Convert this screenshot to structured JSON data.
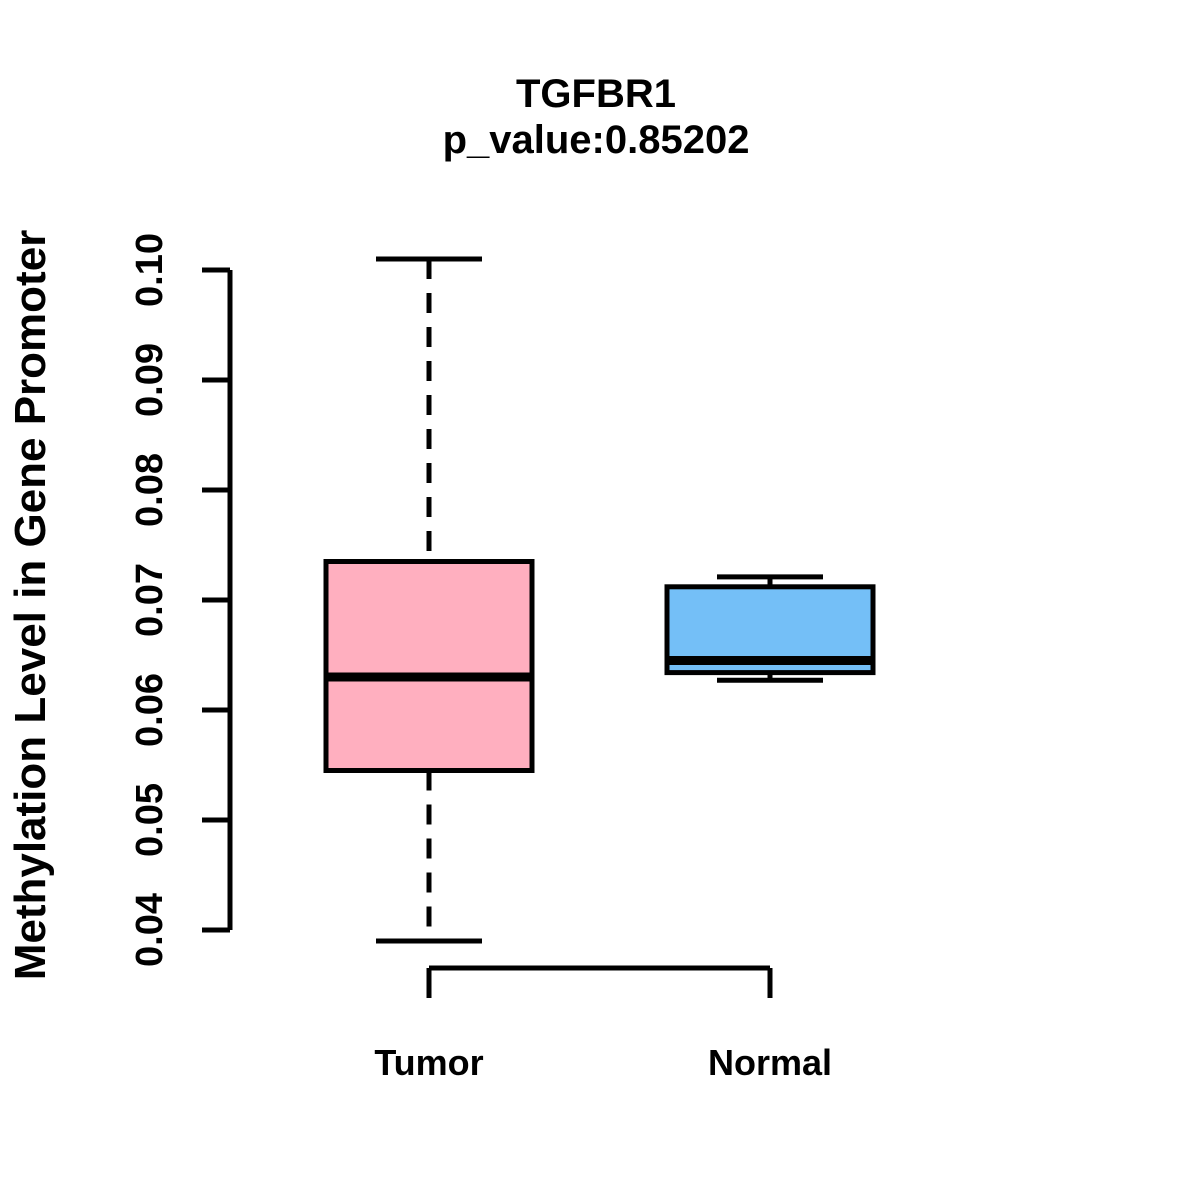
{
  "figure": {
    "background": "#ffffff",
    "line_color": "#000000"
  },
  "chart_data": {
    "type": "boxplot",
    "title": "TGFBR1",
    "subtitle": "p_value:0.85202",
    "ylabel": "Methylation Level in Gene Promoter",
    "xlabel": "",
    "categories": [
      "Tumor",
      "Normal"
    ],
    "y_ticks": [
      "0.04",
      "0.05",
      "0.06",
      "0.07",
      "0.08",
      "0.09",
      "0.10"
    ],
    "ylim": [
      0.04,
      0.1
    ],
    "grid": false,
    "legend": "none",
    "whisker_style": "dashed",
    "series": [
      {
        "name": "Tumor",
        "fill": "#ffafbf",
        "whisker_low": 0.039,
        "q1": 0.0545,
        "median": 0.063,
        "q3": 0.0735,
        "whisker_high": 0.101
      },
      {
        "name": "Normal",
        "fill": "#74bff7",
        "whisker_low": 0.0627,
        "q1": 0.0634,
        "median": 0.0645,
        "q3": 0.0712,
        "whisker_high": 0.0721
      }
    ]
  }
}
